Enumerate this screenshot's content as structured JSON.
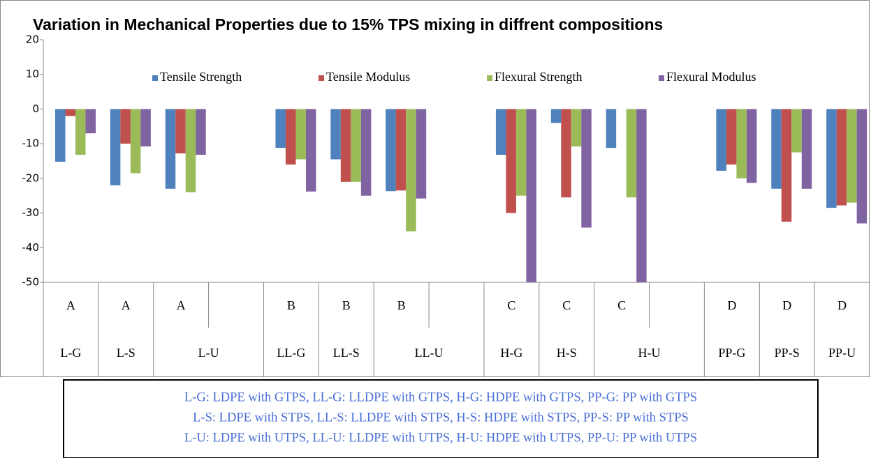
{
  "chart_data": {
    "type": "bar",
    "title": "Variation  in Mechanical Properties due to 15% TPS mixing in diffrent compositions",
    "categories": [
      "A",
      "A",
      "A",
      null,
      "B",
      "B",
      "B",
      null,
      "C",
      "C",
      "C",
      null,
      "D",
      "D",
      "D"
    ],
    "subcategories": [
      "L-G",
      "L-S",
      "L-U",
      null,
      "LL-G",
      "LL-S",
      "LL-U",
      null,
      "H-G",
      "H-S",
      "H-U",
      null,
      "PP-G",
      "PP-S",
      "PP-U"
    ],
    "series": [
      {
        "name": "Tensile Strength",
        "color": "#4f81bd",
        "values": [
          -15.2,
          -22,
          -23,
          null,
          -11.2,
          -14.5,
          -23.7,
          null,
          -13.2,
          -4,
          -11.2,
          null,
          -17.8,
          -23,
          -28.5
        ]
      },
      {
        "name": "Tensile Modulus",
        "color": "#c0504d",
        "values": [
          -2,
          -10,
          -12.8,
          null,
          -16,
          -21,
          -23.5,
          null,
          -30,
          -25.5,
          null,
          null,
          -16,
          -32.5,
          -27.8
        ]
      },
      {
        "name": "Flexural Strength",
        "color": "#9bbb59",
        "values": [
          -13.2,
          -18.5,
          -24,
          null,
          -14.5,
          -21,
          -35.3,
          null,
          -25,
          -10.8,
          -25.5,
          null,
          -20,
          -12.5,
          -27
        ]
      },
      {
        "name": "Flexural Modulus",
        "color": "#8064a2",
        "values": [
          -7,
          -10.8,
          -13.2,
          null,
          -23.8,
          -25,
          -25.8,
          null,
          -50,
          -34.2,
          -50,
          null,
          -21.3,
          -23,
          -33
        ]
      }
    ],
    "ylim": [
      -50,
      20
    ],
    "yticks": [
      20,
      10,
      0,
      -10,
      -20,
      -30,
      -40,
      -50
    ],
    "legend": "top",
    "grid": false,
    "annotations": [
      "L-G: LDPE  with  GTPS,  LL-G:  LLDPE  with  GTPS,  H-G:  HDPE  with  GTPS,  PP-G:  PP  with  GTPS",
      "L-S:  LDPE  with  STPS,  LL-S:  LLDPE  with  STPS,  H-S:  HDPE  with  STPS,  PP-S:  PP  with  STPS",
      "L-U:  LDPE  with  UTPS,  LL-U:  LLDPE  with  UTPS,  H-U:  HDPE  with  UTPS,  PP-U:  PP  with  UTPS"
    ]
  }
}
